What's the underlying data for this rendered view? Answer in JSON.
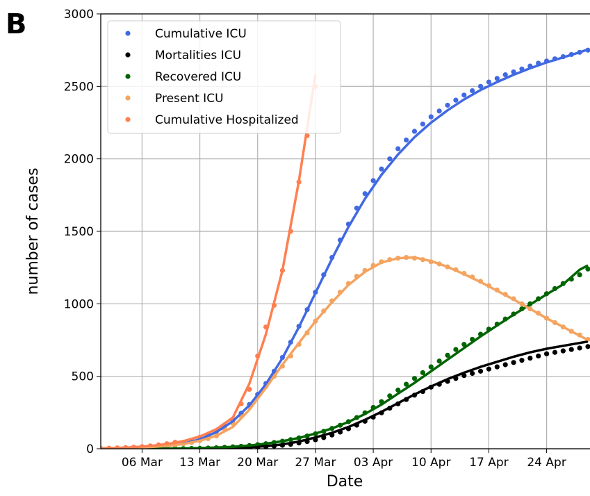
{
  "chart_data": {
    "type": "scatter",
    "panel_label": "B",
    "x_label": "Date",
    "y_label": "number of cases",
    "x": [
      "01 Mar",
      "02 Mar",
      "03 Mar",
      "04 Mar",
      "05 Mar",
      "06 Mar",
      "07 Mar",
      "08 Mar",
      "09 Mar",
      "10 Mar",
      "11 Mar",
      "12 Mar",
      "13 Mar",
      "14 Mar",
      "15 Mar",
      "16 Mar",
      "17 Mar",
      "18 Mar",
      "19 Mar",
      "20 Mar",
      "21 Mar",
      "22 Mar",
      "23 Mar",
      "24 Mar",
      "25 Mar",
      "26 Mar",
      "27 Mar",
      "28 Mar",
      "29 Mar",
      "30 Mar",
      "31 Mar",
      "01 Apr",
      "02 Apr",
      "03 Apr",
      "04 Apr",
      "05 Apr",
      "06 Apr",
      "07 Apr",
      "08 Apr",
      "09 Apr",
      "10 Apr",
      "11 Apr",
      "12 Apr",
      "13 Apr",
      "14 Apr",
      "15 Apr",
      "16 Apr",
      "17 Apr",
      "18 Apr",
      "19 Apr",
      "20 Apr",
      "21 Apr",
      "22 Apr",
      "23 Apr",
      "24 Apr",
      "25 Apr",
      "26 Apr",
      "27 Apr",
      "28 Apr",
      "29 Apr"
    ],
    "fit_x": [
      "01 Mar",
      "03 Mar",
      "05 Mar",
      "07 Mar",
      "09 Mar",
      "11 Mar",
      "13 Mar",
      "15 Mar",
      "17 Mar",
      "19 Mar",
      "21 Mar",
      "23 Mar",
      "25 Mar",
      "27 Mar",
      "29 Mar",
      "31 Mar",
      "02 Apr",
      "04 Apr",
      "06 Apr",
      "08 Apr",
      "10 Apr",
      "12 Apr",
      "14 Apr",
      "16 Apr",
      "18 Apr",
      "20 Apr",
      "22 Apr",
      "24 Apr",
      "26 Apr",
      "28 Apr",
      "29 Apr"
    ],
    "series": [
      {
        "name": "Cumulative ICU",
        "color": "#4169e1",
        "values": [
          1,
          1,
          2,
          3,
          5,
          7,
          10,
          14,
          20,
          28,
          38,
          52,
          70,
          92,
          120,
          155,
          195,
          245,
          305,
          375,
          450,
          535,
          630,
          735,
          845,
          960,
          1080,
          1200,
          1320,
          1440,
          1550,
          1660,
          1760,
          1850,
          1930,
          2000,
          2070,
          2130,
          2190,
          2240,
          2290,
          2330,
          2370,
          2405,
          2440,
          2470,
          2500,
          2530,
          2555,
          2580,
          2600,
          2620,
          2640,
          2660,
          2675,
          2690,
          2705,
          2720,
          2735,
          2750
        ],
        "fit": [
          1,
          3,
          6,
          11,
          20,
          35,
          65,
          115,
          190,
          300,
          445,
          625,
          840,
          1075,
          1310,
          1530,
          1725,
          1890,
          2030,
          2150,
          2250,
          2335,
          2410,
          2475,
          2530,
          2580,
          2625,
          2665,
          2700,
          2735,
          2755
        ]
      },
      {
        "name": "Mortalities ICU",
        "color": "#000000",
        "values": [
          0,
          0,
          0,
          0,
          0,
          0,
          0,
          0,
          0,
          0,
          0,
          0,
          0,
          0,
          0,
          1,
          2,
          4,
          6,
          9,
          13,
          18,
          24,
          31,
          40,
          50,
          62,
          77,
          95,
          115,
          138,
          163,
          190,
          218,
          248,
          280,
          310,
          340,
          370,
          395,
          425,
          445,
          465,
          485,
          505,
          520,
          535,
          550,
          565,
          580,
          595,
          610,
          625,
          640,
          655,
          665,
          675,
          685,
          695,
          705
        ],
        "fit": [
          0,
          0,
          0,
          0,
          0,
          0,
          1,
          2,
          5,
          10,
          18,
          30,
          50,
          78,
          110,
          150,
          200,
          255,
          315,
          375,
          430,
          480,
          525,
          565,
          600,
          635,
          665,
          690,
          710,
          730,
          740
        ]
      },
      {
        "name": "Recovered ICU",
        "color": "#006400",
        "values": [
          0,
          0,
          0,
          0,
          0,
          0,
          0,
          0,
          0,
          0,
          1,
          2,
          3,
          5,
          7,
          10,
          13,
          17,
          22,
          28,
          35,
          43,
          52,
          63,
          75,
          88,
          103,
          120,
          140,
          162,
          187,
          215,
          248,
          285,
          325,
          365,
          405,
          445,
          485,
          525,
          565,
          605,
          645,
          685,
          720,
          755,
          790,
          825,
          860,
          895,
          930,
          965,
          1000,
          1035,
          1070,
          1105,
          1140,
          1170,
          1200,
          1240
        ],
        "fit": [
          0,
          0,
          1,
          1,
          2,
          3,
          5,
          8,
          13,
          22,
          35,
          52,
          75,
          105,
          140,
          185,
          240,
          305,
          380,
          455,
          535,
          615,
          695,
          775,
          850,
          925,
          995,
          1065,
          1135,
          1235,
          1265
        ]
      },
      {
        "name": "Present ICU",
        "color": "#f4a460",
        "values": [
          2,
          3,
          4,
          6,
          8,
          10,
          13,
          17,
          22,
          28,
          35,
          44,
          56,
          70,
          88,
          135,
          175,
          225,
          290,
          360,
          430,
          500,
          570,
          640,
          720,
          800,
          880,
          950,
          1020,
          1080,
          1140,
          1190,
          1230,
          1265,
          1290,
          1305,
          1315,
          1320,
          1315,
          1305,
          1290,
          1275,
          1255,
          1235,
          1210,
          1185,
          1155,
          1125,
          1095,
          1065,
          1035,
          1000,
          965,
          935,
          900,
          870,
          840,
          810,
          785,
          755
        ],
        "fit": [
          2,
          4,
          7,
          12,
          20,
          33,
          55,
          90,
          150,
          270,
          420,
          580,
          730,
          880,
          1010,
          1130,
          1220,
          1285,
          1315,
          1320,
          1295,
          1255,
          1205,
          1150,
          1090,
          1030,
          965,
          900,
          840,
          780,
          750
        ]
      },
      {
        "name": "Cumulative Hospitalized",
        "color": "#ff7f50",
        "values": [
          2,
          4,
          6,
          8,
          11,
          15,
          20,
          27,
          35,
          45,
          45,
          60,
          80,
          100,
          125,
          160,
          205,
          310,
          410,
          640,
          840,
          990,
          1230,
          1500,
          1840,
          2160,
          2500,
          null,
          null,
          null,
          null,
          null,
          null,
          null,
          null,
          null,
          null,
          null,
          null,
          null,
          null,
          null,
          null,
          null,
          null,
          null,
          null,
          null,
          null,
          null,
          null,
          null,
          null,
          null,
          null,
          null,
          null,
          null,
          null,
          null
        ],
        "fit": [
          3,
          6,
          11,
          19,
          32,
          52,
          85,
          135,
          215,
          450,
          790,
          1230,
          1850,
          2580,
          null,
          null,
          null,
          null,
          null,
          null,
          null,
          null,
          null,
          null,
          null,
          null,
          null,
          null,
          null,
          null,
          null
        ]
      }
    ],
    "xlim": [
      "01 Mar",
      "29 Apr"
    ],
    "xticks": [
      "06 Mar",
      "13 Mar",
      "20 Mar",
      "27 Mar",
      "03 Apr",
      "10 Apr",
      "17 Apr",
      "24 Apr"
    ],
    "ylim": [
      0,
      3000
    ],
    "yticks": [
      0,
      500,
      1000,
      1500,
      2000,
      2500,
      3000
    ],
    "grid": true,
    "legend": "upper left"
  }
}
